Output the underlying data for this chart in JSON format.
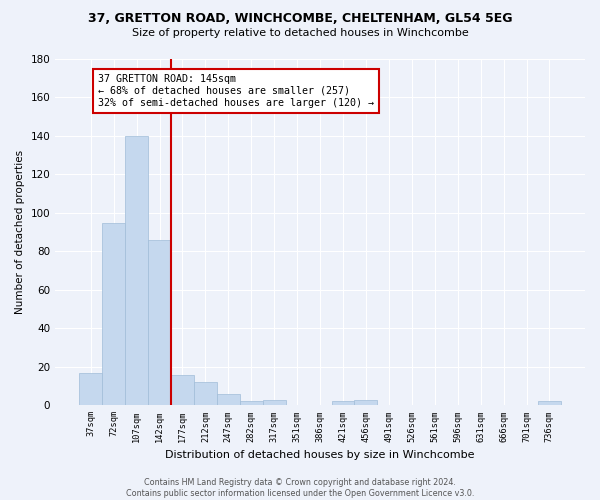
{
  "title_line1": "37, GRETTON ROAD, WINCHCOMBE, CHELTENHAM, GL54 5EG",
  "title_line2": "Size of property relative to detached houses in Winchcombe",
  "xlabel": "Distribution of detached houses by size in Winchcombe",
  "ylabel": "Number of detached properties",
  "bar_color": "#c5d8ee",
  "bar_edge_color": "#a0bcd8",
  "categories": [
    "37sqm",
    "72sqm",
    "107sqm",
    "142sqm",
    "177sqm",
    "212sqm",
    "247sqm",
    "282sqm",
    "317sqm",
    "351sqm",
    "386sqm",
    "421sqm",
    "456sqm",
    "491sqm",
    "526sqm",
    "561sqm",
    "596sqm",
    "631sqm",
    "666sqm",
    "701sqm",
    "736sqm"
  ],
  "values": [
    17,
    95,
    140,
    86,
    16,
    12,
    6,
    2,
    3,
    0,
    0,
    2,
    3,
    0,
    0,
    0,
    0,
    0,
    0,
    0,
    2
  ],
  "ylim": [
    0,
    180
  ],
  "yticks": [
    0,
    20,
    40,
    60,
    80,
    100,
    120,
    140,
    160,
    180
  ],
  "vline_x": 3.5,
  "vline_color": "#cc0000",
  "annotation_text": "37 GRETTON ROAD: 145sqm\n← 68% of detached houses are smaller (257)\n32% of semi-detached houses are larger (120) →",
  "annotation_box_color": "#ffffff",
  "annotation_box_edge": "#cc0000",
  "footer_text": "Contains HM Land Registry data © Crown copyright and database right 2024.\nContains public sector information licensed under the Open Government Licence v3.0.",
  "bg_color": "#eef2fa",
  "grid_color": "#ffffff"
}
